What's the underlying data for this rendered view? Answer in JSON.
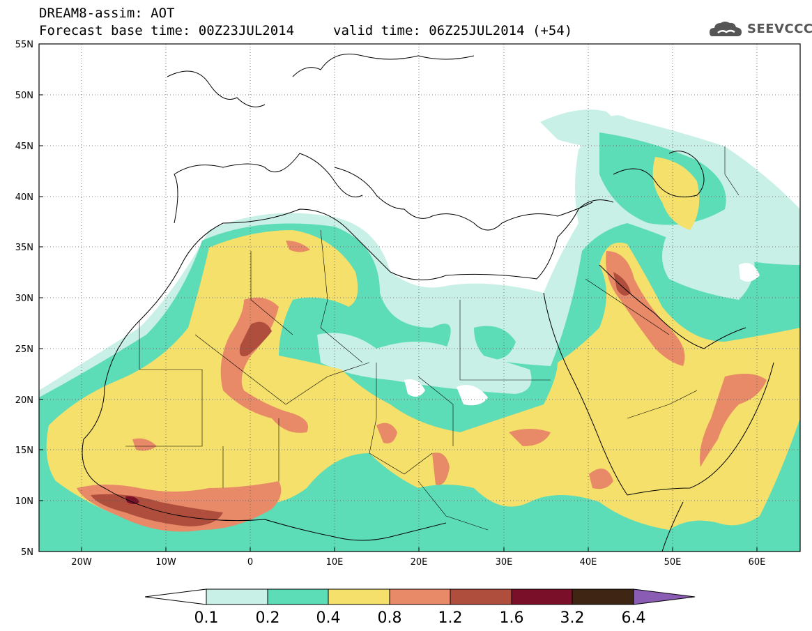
{
  "header": {
    "title": "DREAM8-assim: AOT",
    "base_time": "Forecast base time: 00Z23JUL2014",
    "valid_time": "valid time: 06Z25JUL2014 (+54)"
  },
  "logo": {
    "text": "SEEVCCC",
    "icon": "cloud-icon",
    "color": "#555555"
  },
  "map": {
    "lat_labels": [
      "55N",
      "50N",
      "45N",
      "40N",
      "35N",
      "30N",
      "25N",
      "20N",
      "15N",
      "10N",
      "5N"
    ],
    "lon_labels": [
      "20W",
      "10W",
      "0",
      "10E",
      "20E",
      "30E",
      "40E",
      "50E",
      "60E"
    ],
    "lon_range": [
      -25,
      65
    ],
    "lat_range": [
      5,
      55
    ],
    "grid": "dotted"
  },
  "colorbar": {
    "labels": [
      "0.1",
      "0.2",
      "0.4",
      "0.8",
      "1.2",
      "1.6",
      "3.2",
      "6.4"
    ],
    "colors": [
      "#c8f0e6",
      "#5ddcb8",
      "#f4e06a",
      "#e88a68",
      "#b04e3e",
      "#7a0f2a",
      "#3e2514",
      "#8a5cb4"
    ],
    "extend": "both"
  }
}
